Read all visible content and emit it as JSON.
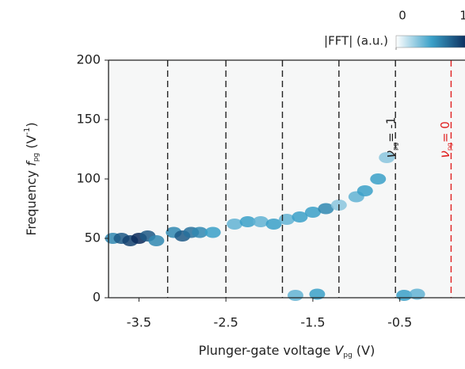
{
  "chart_data": {
    "type": "heatmap",
    "xlabel": {
      "text": "Plunger-gate voltage ",
      "symbol": "V",
      "subscript": "pg",
      "unit": " (V)"
    },
    "ylabel": {
      "text": "Frequency  ",
      "symbol": "f",
      "subscript": "pg",
      "unit": " (V",
      "superscript": "-1",
      "close": ")"
    },
    "xlim": [
      -3.85,
      0.25
    ],
    "ylim": [
      0,
      200
    ],
    "xticks": [
      -3.5,
      -2.5,
      -1.5,
      -0.5
    ],
    "yticks": [
      0,
      50,
      100,
      150,
      200
    ],
    "colorbar": {
      "label": "|FFT| (a.u.)",
      "ticks": [
        0,
        1
      ],
      "colormap": [
        "#ffffff",
        "#3aa0c8",
        "#0a2a5a"
      ]
    },
    "vlines": [
      {
        "x": -3.17,
        "color": "#222222"
      },
      {
        "x": -2.5,
        "color": "#222222"
      },
      {
        "x": -1.85,
        "color": "#222222"
      },
      {
        "x": -1.2,
        "color": "#222222"
      },
      {
        "x": -0.55,
        "color": "#222222"
      },
      {
        "x": 0.09,
        "color": "#e02020"
      }
    ],
    "annotations": [
      {
        "symbol": "ν",
        "subscript": "pg",
        "text": "= -1",
        "x": -0.6,
        "y": 135,
        "color": "#222222"
      },
      {
        "symbol": "ν",
        "subscript": "pg",
        "text": "= 0",
        "x": 0.02,
        "y": 133,
        "color": "#e02020"
      }
    ],
    "points": {
      "x": [
        -3.8,
        -3.7,
        -3.6,
        -3.5,
        -3.4,
        -3.3,
        -3.1,
        -3.0,
        -2.9,
        -2.8,
        -2.65,
        -2.4,
        -2.25,
        -2.1,
        -1.95,
        -1.8,
        -1.65,
        -1.5,
        -1.35,
        -1.2,
        -1.0,
        -0.9,
        -0.75,
        -0.65,
        -1.7,
        -1.45,
        -0.45,
        -0.3
      ],
      "y": [
        50,
        50,
        48,
        50,
        52,
        48,
        55,
        52,
        55,
        55,
        55,
        62,
        64,
        64,
        62,
        66,
        68,
        72,
        75,
        78,
        85,
        90,
        100,
        118,
        2,
        3,
        2,
        3
      ],
      "intensity": [
        0.6,
        0.8,
        0.9,
        1,
        0.8,
        0.6,
        0.6,
        0.8,
        0.7,
        0.6,
        0.5,
        0.4,
        0.5,
        0.4,
        0.5,
        0.4,
        0.5,
        0.5,
        0.6,
        0.3,
        0.4,
        0.5,
        0.5,
        0.3,
        0.4,
        0.5,
        0.5,
        0.4
      ]
    }
  }
}
